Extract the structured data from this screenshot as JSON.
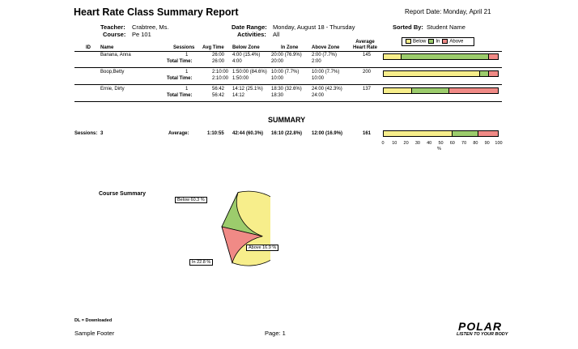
{
  "report": {
    "title": "Heart Rate Class Summary Report",
    "report_date": "Report Date:  Monday, April 21",
    "teacher_label": "Teacher:",
    "teacher": "Crabtree, Ms.",
    "course_label": "Course:",
    "course": "Pe 101",
    "date_range_label": "Date Range:",
    "date_range": "Monday, August 18 - Thursday",
    "activities_label": "Activities:",
    "activities": "All",
    "sorted_by_label": "Sorted By:",
    "sorted_by": "Student Name"
  },
  "columns": {
    "id": "ID",
    "name": "Name",
    "sessions": "Sessions",
    "avg_time": "Avg Time",
    "below": "Below Zone",
    "in": "In Zone",
    "above": "Above Zone",
    "avg_hr": "Average Heart Rate"
  },
  "legend": {
    "below": "Below",
    "in": "In",
    "above": "Above"
  },
  "colors": {
    "below": "#f7ee8b",
    "in": "#9ccc6c",
    "above": "#f08a86"
  },
  "students": [
    {
      "name": "Banana, Anna",
      "sessions": "1",
      "avg_time": "26:00",
      "below": "4:00 (15.4%)",
      "in": "20:00 (76.9%)",
      "above": "2:00 (7.7%)",
      "avg_hr": "145",
      "total_label": "Total Time:",
      "total_time": "26:00",
      "total_below": "4:00",
      "total_in": "20:00",
      "total_above": "2:00",
      "pct": [
        15.4,
        76.9,
        7.7
      ]
    },
    {
      "name": "Boop,Betty",
      "sessions": "1",
      "avg_time": "2:10:00",
      "below": "1:50:00 (84.6%)",
      "in": "10:00 (7.7%)",
      "above": "10:00 (7.7%)",
      "avg_hr": "200",
      "total_label": "Total Time:",
      "total_time": "2:10:00",
      "total_below": "1:50:00",
      "total_in": "10:00",
      "total_above": "10:00",
      "pct": [
        84.6,
        7.7,
        7.7
      ]
    },
    {
      "name": "Ernie, Dirty",
      "sessions": "1",
      "avg_time": "56:42",
      "below": "14:12 (25.1%)",
      "in": "18:30 (32.6%)",
      "above": "24:00 (42.3%)",
      "avg_hr": "137",
      "total_label": "Total Time:",
      "total_time": "56:42",
      "total_below": "14:12",
      "total_in": "18:30",
      "total_above": "24:00",
      "pct": [
        25.1,
        32.6,
        42.3
      ]
    }
  ],
  "summary": {
    "title": "SUMMARY",
    "sessions_label": "Sessions:",
    "sessions": "3",
    "average_label": "Average:",
    "avg_time": "1:10:55",
    "below": "42:44 (60.3%)",
    "in": "16:10 (22.8%)",
    "above": "12:00 (16.9%)",
    "avg_hr": "161",
    "pct": [
      60.3,
      22.8,
      16.9
    ],
    "axis_ticks": [
      "0",
      "10",
      "20",
      "30",
      "40",
      "50",
      "60",
      "70",
      "80",
      "90",
      "100"
    ],
    "axis_unit": "%"
  },
  "chart_data": {
    "type": "pie",
    "title": "Course Summary",
    "categories": [
      "Below",
      "In",
      "Above"
    ],
    "values": [
      60.3,
      22.8,
      16.9
    ],
    "labels": [
      "Below 60.3 %",
      "In 22.8 %",
      "Above 16.9 %"
    ]
  },
  "footer": {
    "legend_note": "DL = Downloaded",
    "sample_footer": "Sample Footer",
    "page": "Page:  1",
    "brand": "POLAR",
    "tagline": "LISTEN TO YOUR BODY"
  }
}
